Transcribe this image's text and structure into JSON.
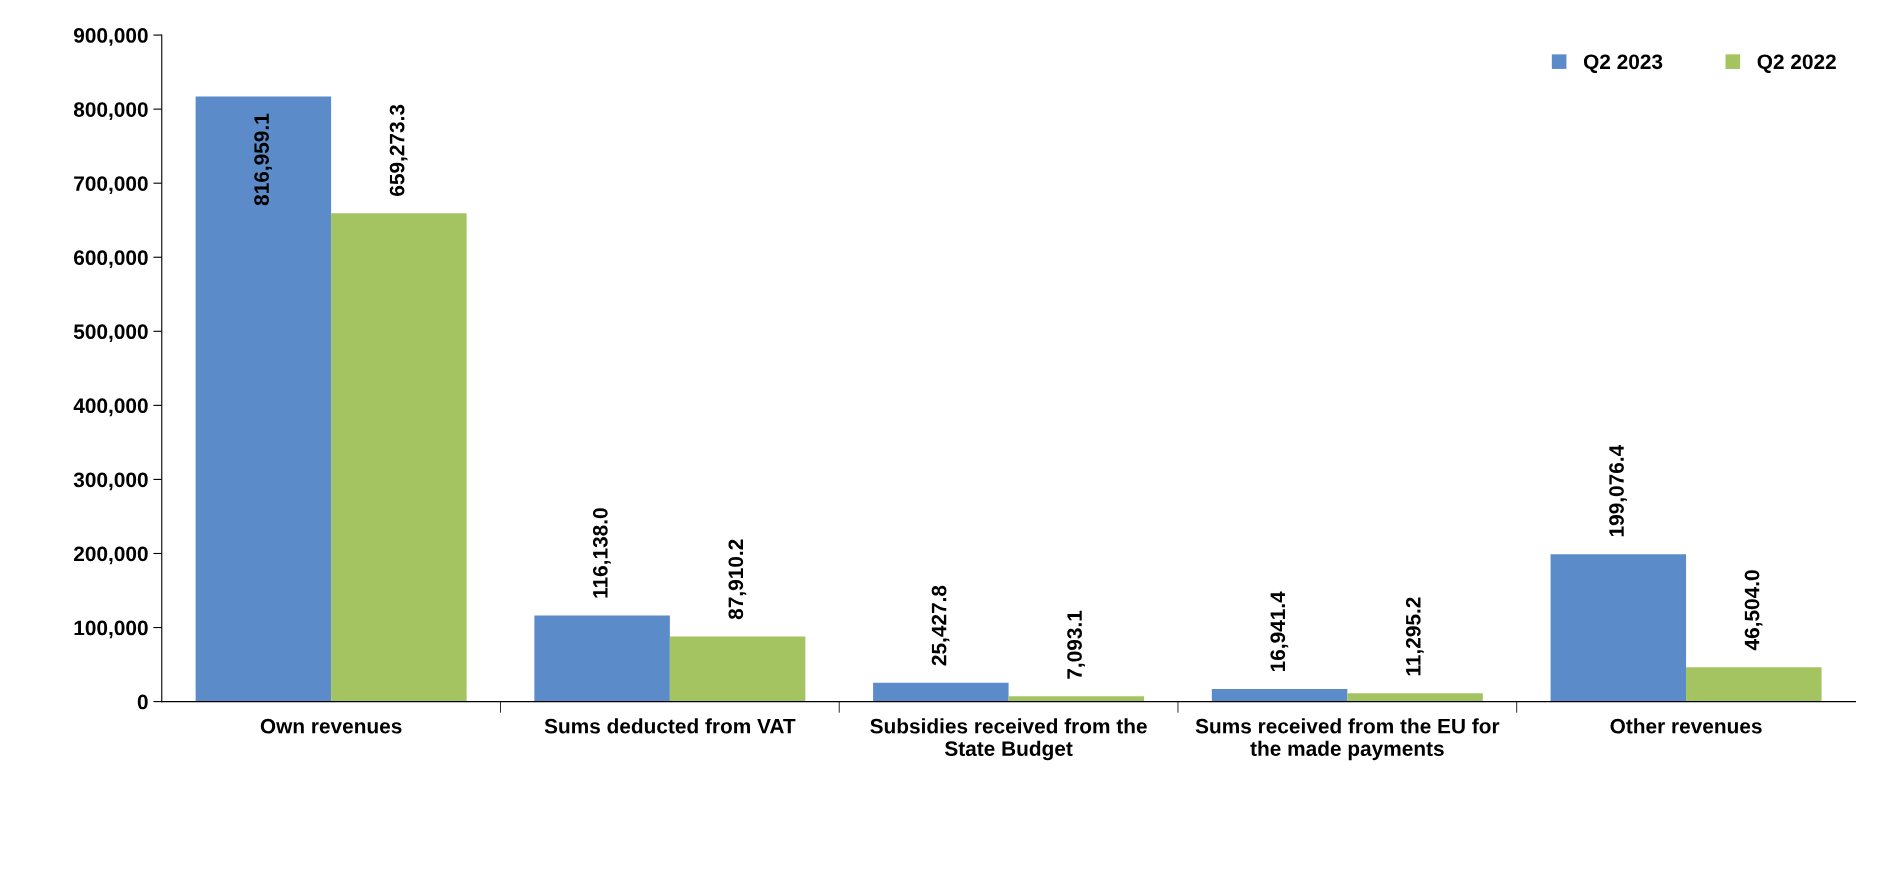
{
  "chart_data": {
    "type": "bar",
    "categories": [
      "Own revenues",
      "Sums deducted from VAT",
      "Subsidies received from the State Budget",
      "Sums received from the EU for the made payments",
      "Other revenues"
    ],
    "series": [
      {
        "name": "Q2 2023",
        "color": "#5b8bc9",
        "values": [
          816959.1,
          116138.0,
          25427.8,
          16941.4,
          199076.4
        ],
        "value_labels": [
          "816,959.1",
          "116,138.0",
          "25,427.8",
          "16,941.4",
          "199,076.4"
        ]
      },
      {
        "name": "Q2 2022",
        "color": "#a3c460",
        "values": [
          659273.3,
          87910.2,
          7093.1,
          11295.2,
          46504.0
        ],
        "value_labels": [
          "659,273.3",
          "87,910.2",
          "7,093.1",
          "11,295.2",
          "46,504.0"
        ]
      }
    ],
    "ylim": [
      0,
      900000
    ],
    "yticks": [
      0,
      {
        "value": 100000,
        "label": "100,000"
      },
      {
        "value": 200000,
        "label": "200,000"
      },
      {
        "value": 300000,
        "label": "300,000"
      },
      {
        "value": 400000,
        "label": "400,000"
      },
      {
        "value": 500000,
        "label": "500,000"
      },
      {
        "value": 600000,
        "label": "600,000"
      },
      {
        "value": 700000,
        "label": "700,000"
      },
      {
        "value": 800000,
        "label": "800,000"
      },
      {
        "value": 900000,
        "label": "900,000"
      }
    ],
    "grid": false,
    "legend": "top right"
  }
}
